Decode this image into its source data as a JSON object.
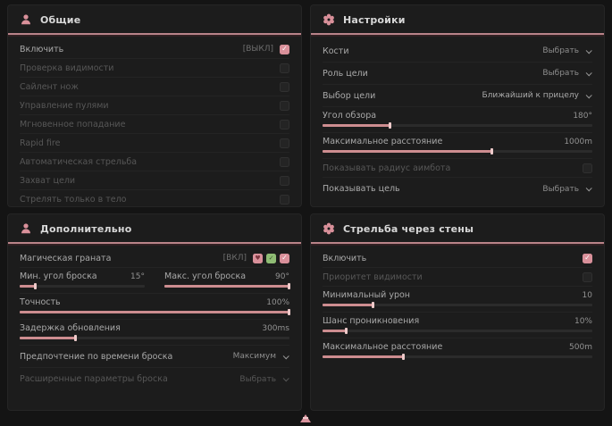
{
  "colors": {
    "accent": "#d9909a",
    "panel_bg": "#1c1c1c",
    "page_bg": "#141414",
    "slider_fill": "#cd8d90"
  },
  "general": {
    "title": "Общие",
    "rows": [
      {
        "label": "Включить",
        "tag": "[ВЫКЛ]",
        "checked": true
      },
      {
        "label": "Проверка видимости",
        "checked": false
      },
      {
        "label": "Сайлент нож",
        "checked": false
      },
      {
        "label": "Управление пулями",
        "checked": false
      },
      {
        "label": "Мгновенное попадание",
        "checked": false
      },
      {
        "label": "Rapid fire",
        "checked": false
      },
      {
        "label": "Автоматическая стрельба",
        "checked": false
      },
      {
        "label": "Захват цели",
        "checked": false
      },
      {
        "label": "Стрелять только в тело",
        "checked": false
      }
    ]
  },
  "settings": {
    "title": "Настройки",
    "bones": {
      "label": "Кости",
      "value": "Выбрать"
    },
    "target_role": {
      "label": "Роль цели",
      "value": "Выбрать"
    },
    "target_select": {
      "label": "Выбор цели",
      "value": "Ближайший к прицелу"
    },
    "fov": {
      "label": "Угол обзора",
      "value": "180°",
      "fill": 25
    },
    "max_distance": {
      "label": "Максимальное расстояние",
      "value": "1000m",
      "fill": 63
    },
    "show_radius": {
      "label": "Показывать радиус аимбота",
      "checked": false
    },
    "show_target": {
      "label": "Показывать цель",
      "value": "Выбрать"
    }
  },
  "additional": {
    "title": "Дополнительно",
    "magic_grenade": {
      "label": "Магическая граната",
      "tag": "[ВКЛ]",
      "checked": true
    },
    "min_angle": {
      "label": "Мин. угол броска",
      "value": "15°",
      "fill": 13
    },
    "max_angle": {
      "label": "Макс. угол броска",
      "value": "90°",
      "fill": 100
    },
    "accuracy": {
      "label": "Точность",
      "value": "100%",
      "fill": 100
    },
    "update_delay": {
      "label": "Задержка обновления",
      "value": "300ms",
      "fill": 21
    },
    "throw_time": {
      "label": "Предпочтение по времени броска",
      "value": "Максимум"
    },
    "advanced": {
      "label": "Расширенные параметры броска",
      "value": "Выбрать"
    }
  },
  "wallbang": {
    "title": "Стрельба через стены",
    "enable": {
      "label": "Включить",
      "checked": true
    },
    "visibility_priority": {
      "label": "Приоритет видимости",
      "checked": false
    },
    "min_damage": {
      "label": "Минимальный урон",
      "value": "10",
      "fill": 19
    },
    "penetration_chance": {
      "label": "Шанс проникновения",
      "value": "10%",
      "fill": 9
    },
    "max_distance": {
      "label": "Максимальное расстояние",
      "value": "500m",
      "fill": 30
    }
  }
}
